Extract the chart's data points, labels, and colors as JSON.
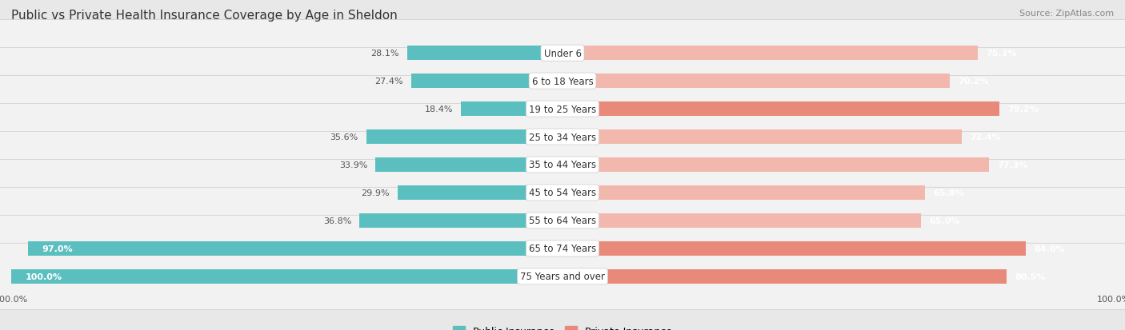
{
  "title": "Public vs Private Health Insurance Coverage by Age in Sheldon",
  "source": "Source: ZipAtlas.com",
  "categories": [
    "Under 6",
    "6 to 18 Years",
    "19 to 25 Years",
    "25 to 34 Years",
    "35 to 44 Years",
    "45 to 54 Years",
    "55 to 64 Years",
    "65 to 74 Years",
    "75 Years and over"
  ],
  "public_values": [
    28.1,
    27.4,
    18.4,
    35.6,
    33.9,
    29.9,
    36.8,
    97.0,
    100.0
  ],
  "private_values": [
    75.3,
    70.2,
    79.2,
    72.4,
    77.3,
    65.8,
    65.0,
    84.0,
    80.5
  ],
  "public_color": "#5bbfbf",
  "private_color": "#e8897a",
  "private_color_light": "#f2b8ae",
  "background_color": "#e8e8e8",
  "row_bg_color": "#f2f2f2",
  "bar_height": 0.52,
  "max_value": 100.0,
  "title_fontsize": 11,
  "label_fontsize": 8.5,
  "value_fontsize": 8,
  "legend_fontsize": 9,
  "source_fontsize": 8,
  "xlabel_fontsize": 8
}
